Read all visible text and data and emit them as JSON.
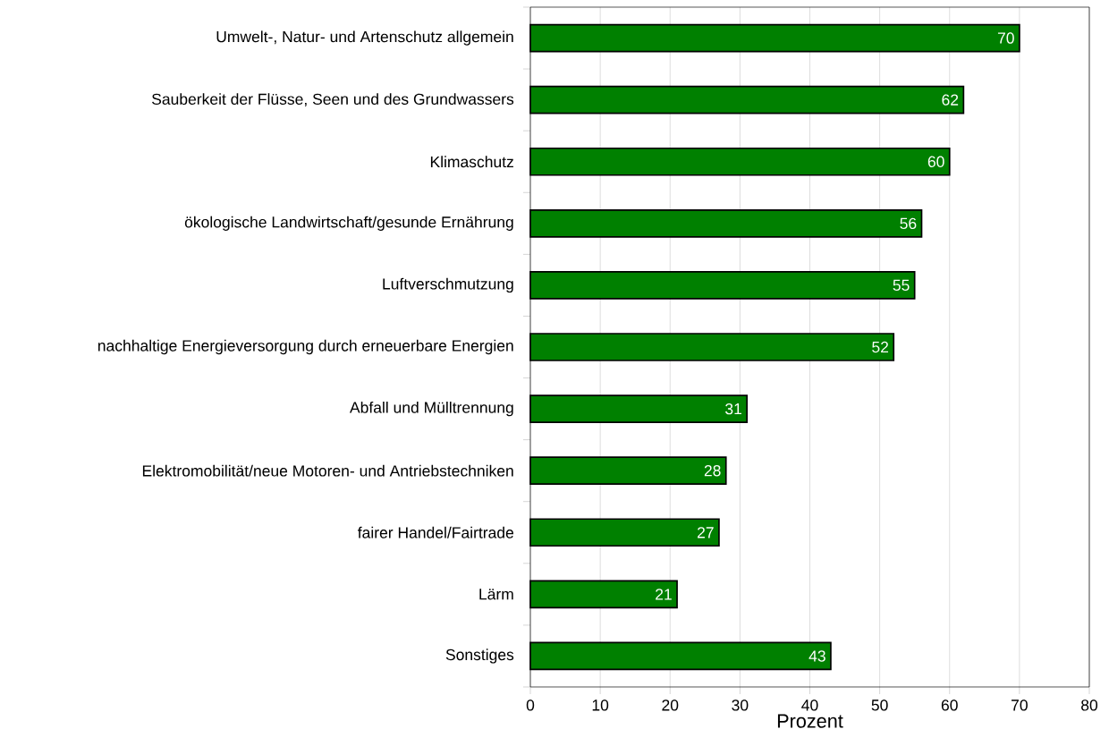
{
  "chart_data": {
    "type": "bar",
    "orientation": "horizontal",
    "xlabel": "Prozent",
    "categories": [
      "Umwelt-, Natur- und Artenschutz allgemein",
      "Sauberkeit der Flüsse, Seen und des Grundwassers",
      "Klimaschutz",
      "ökologische Landwirtschaft/gesunde Ernährung",
      "Luftverschmutzung",
      "nachhaltige Energieversorgung durch erneuerbare Energien",
      "Abfall und Mülltrennung",
      "Elektromobilität/neue Motoren- und Antriebstechniken",
      "fairer Handel/Fairtrade",
      "Lärm",
      "Sonstiges"
    ],
    "values": [
      70,
      62,
      60,
      56,
      55,
      52,
      31,
      28,
      27,
      21,
      43
    ],
    "color": "#008000",
    "data_labels": true,
    "grid": "x",
    "xlim": [
      0,
      80
    ],
    "xticks": [
      0,
      10,
      20,
      30,
      40,
      50,
      60,
      70,
      80
    ]
  }
}
